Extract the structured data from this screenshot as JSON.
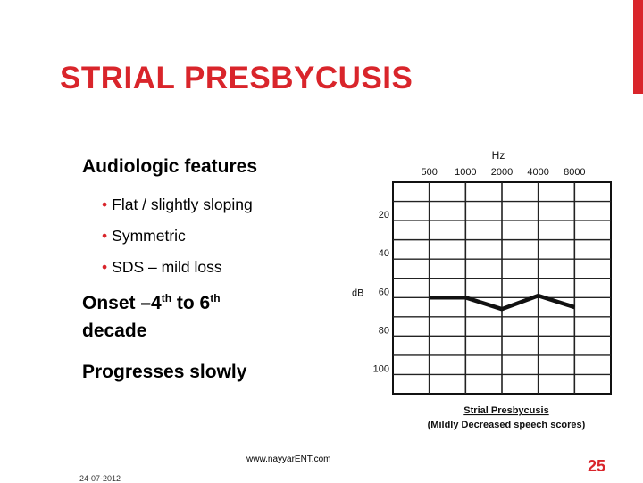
{
  "title": "STRIAL PRESBYCUSIS",
  "left": {
    "heading": "Audiologic features",
    "bullets": [
      "Flat / slightly sloping",
      "Symmetric",
      "SDS – mild loss"
    ],
    "onset_prefix": "Onset –4",
    "onset_sup1": "th",
    "onset_mid": " to 6",
    "onset_sup2": "th",
    "onset_suffix": "decade",
    "progress": "Progresses slowly"
  },
  "chart_data": {
    "type": "line",
    "title": "Hz",
    "ylabel": "dB",
    "x": [
      "500",
      "1000",
      "2000",
      "4000",
      "8000"
    ],
    "y_ticks": [
      "20",
      "40",
      "60",
      "80",
      "100"
    ],
    "ylim": [
      0,
      110
    ],
    "y_inverted": true,
    "series": [
      {
        "values": [
          60,
          60,
          66,
          59,
          65
        ]
      }
    ],
    "caption_line1": "Strial Presbycusis",
    "caption_line2": "(Mildly Decreased speech scores)",
    "grid": true
  },
  "footer": {
    "url": "www.nayyarENT.com",
    "date": "24-07-2012",
    "page": "25"
  },
  "colors": {
    "accent": "#d9252b",
    "text": "#000000"
  }
}
